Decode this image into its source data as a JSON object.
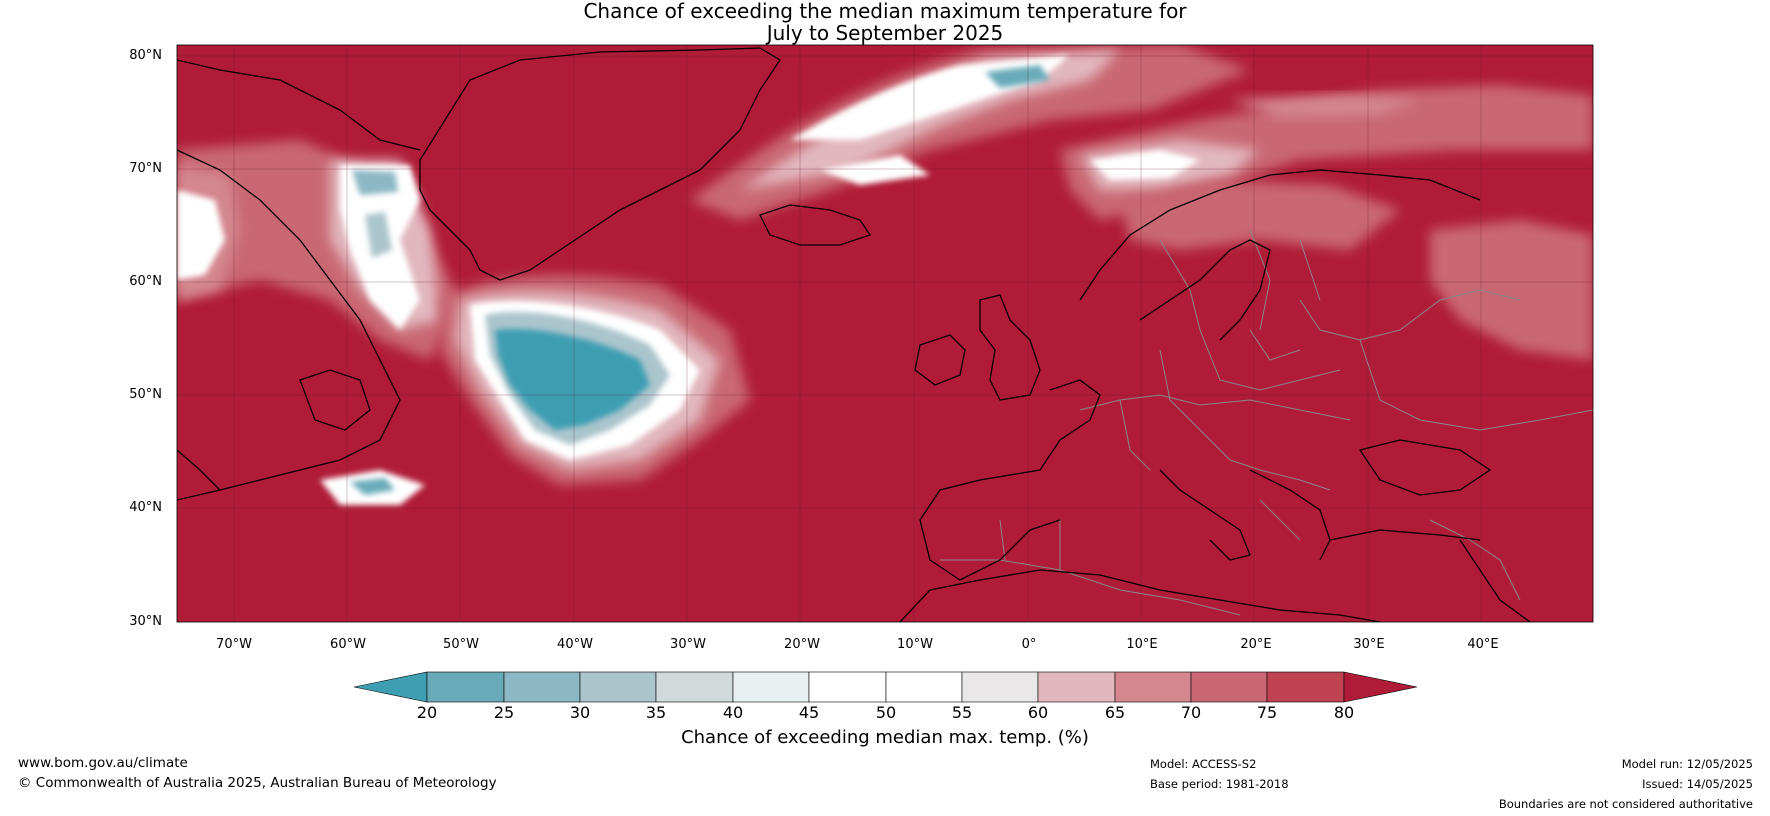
{
  "title": {
    "line1": "Chance of exceeding the median maximum temperature for",
    "line2": "July to September 2025"
  },
  "axes": {
    "lat_labels": [
      "80°N",
      "70°N",
      "60°N",
      "50°N",
      "40°N",
      "30°N"
    ],
    "lon_labels": [
      "70°W",
      "60°W",
      "50°W",
      "40°W",
      "30°W",
      "20°W",
      "10°W",
      "0°",
      "10°E",
      "20°E",
      "30°E",
      "40°E"
    ]
  },
  "colorbar": {
    "ticks": [
      "20",
      "25",
      "30",
      "35",
      "40",
      "45",
      "50",
      "55",
      "60",
      "65",
      "70",
      "75",
      "80"
    ],
    "label": "Chance of exceeding median max. temp. (%)",
    "colors": {
      "below_20": "#3e9eb2",
      "20-25": "#69aab9",
      "25-30": "#8bb8c4",
      "30-35": "#abc5cc",
      "35-40": "#d0dadb",
      "40-45": "#e9f0f1",
      "45-50": "#ffffff",
      "50-55": "#ffffff",
      "55-60": "#eae7e8",
      "60-65": "#e2b8bf",
      "65-70": "#d4878f",
      "70-75": "#c96872",
      "75-80": "#bf4352",
      "above_80": "#b01c37"
    }
  },
  "map": {
    "extent_lon": [
      -75,
      50
    ],
    "extent_lat": [
      30,
      81
    ],
    "background_color": "#b01c37",
    "features": {
      "coastline_color": "#000000",
      "border_color": "#888888",
      "gridline_color": "#5a1020"
    }
  },
  "footer": {
    "website": "www.bom.gov.au/climate",
    "copyright": "© Commonwealth of Australia 2025, Australian Bureau of Meteorology",
    "model": "Model: ACCESS-S2",
    "base_period": "Base period: 1981-2018",
    "model_run": "Model run: 12/05/2025",
    "issued": "Issued: 14/05/2025",
    "disclaimer": "Boundaries are not considered authoritative"
  }
}
